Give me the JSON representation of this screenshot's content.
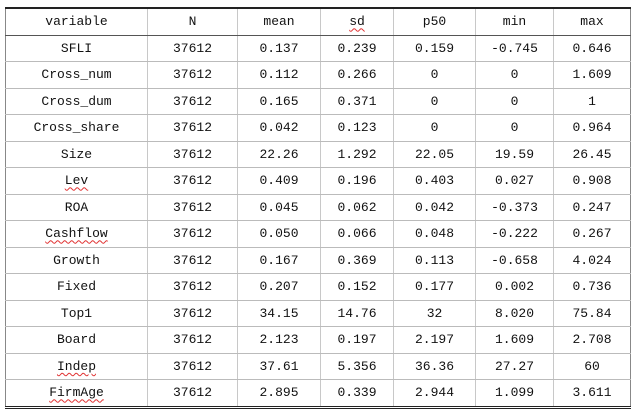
{
  "table": {
    "header": [
      "variable",
      "N",
      "mean",
      "sd",
      "p50",
      "min",
      "max"
    ],
    "rows": [
      [
        "SFLI",
        "37612",
        "0.137",
        "0.239",
        "0.159",
        "-0.745",
        "0.646"
      ],
      [
        "Cross_num",
        "37612",
        "0.112",
        "0.266",
        "0",
        "0",
        "1.609"
      ],
      [
        "Cross_dum",
        "37612",
        "0.165",
        "0.371",
        "0",
        "0",
        "1"
      ],
      [
        "Cross_share",
        "37612",
        "0.042",
        "0.123",
        "0",
        "0",
        "0.964"
      ],
      [
        "Size",
        "37612",
        "22.26",
        "1.292",
        "22.05",
        "19.59",
        "26.45"
      ],
      [
        "Lev",
        "37612",
        "0.409",
        "0.196",
        "0.403",
        "0.027",
        "0.908"
      ],
      [
        "ROA",
        "37612",
        "0.045",
        "0.062",
        "0.042",
        "-0.373",
        "0.247"
      ],
      [
        "Cashflow",
        "37612",
        "0.050",
        "0.066",
        "0.048",
        "-0.222",
        "0.267"
      ],
      [
        "Growth",
        "37612",
        "0.167",
        "0.369",
        "0.113",
        "-0.658",
        "4.024"
      ],
      [
        "Fixed",
        "37612",
        "0.207",
        "0.152",
        "0.177",
        "0.002",
        "0.736"
      ],
      [
        "Top1",
        "37612",
        "34.15",
        "14.76",
        "32",
        "8.020",
        "75.84"
      ],
      [
        "Board",
        "37612",
        "2.123",
        "0.197",
        "2.197",
        "1.609",
        "2.708"
      ],
      [
        "Indep",
        "37612",
        "37.61",
        "5.356",
        "36.36",
        "27.27",
        "60"
      ],
      [
        "FirmAge",
        "37612",
        "2.895",
        "0.339",
        "2.944",
        "1.099",
        "3.611"
      ]
    ]
  }
}
